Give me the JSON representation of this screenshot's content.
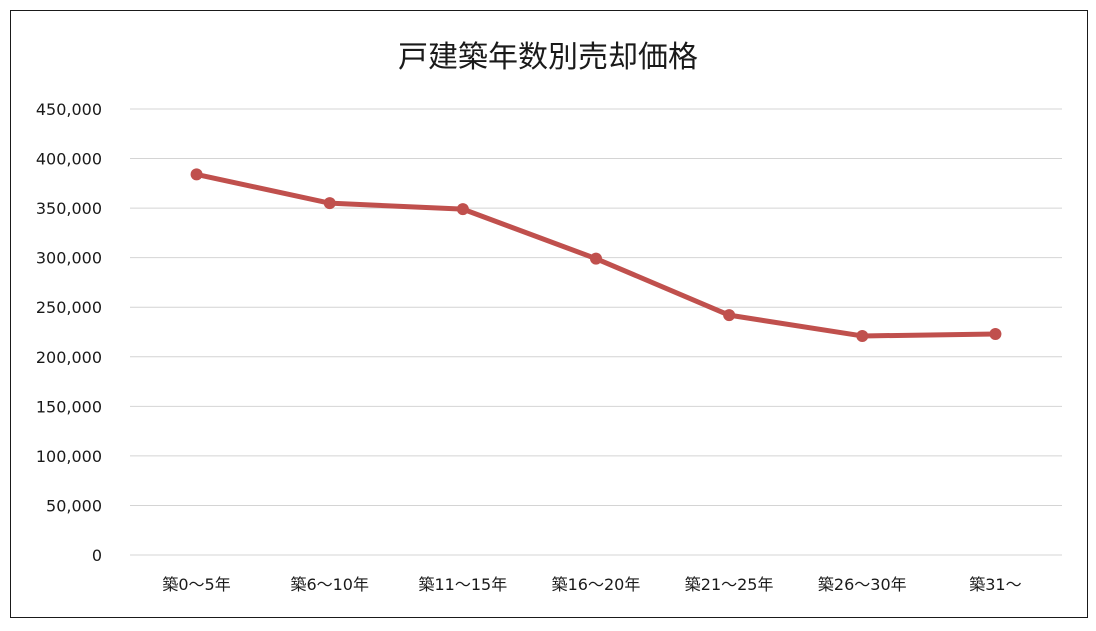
{
  "chart_data": {
    "type": "line",
    "title": "戸建築年数別売却価格",
    "categories": [
      "築0〜5年",
      "築6〜10年",
      "築11〜15年",
      "築16〜20年",
      "築21〜25年",
      "築26〜30年",
      "築31〜"
    ],
    "series": [
      {
        "values": [
          384000,
          355000,
          349000,
          299000,
          242000,
          221000,
          223000
        ],
        "color": "#c0504d"
      }
    ],
    "ylim": [
      0,
      450000
    ],
    "yticks": [
      0,
      50000,
      100000,
      150000,
      200000,
      250000,
      300000,
      350000,
      400000,
      450000
    ],
    "ytick_labels": [
      "0",
      "50,000",
      "100,000",
      "150,000",
      "200,000",
      "250,000",
      "300,000",
      "350,000",
      "400,000",
      "450,000"
    ],
    "xlabel": "",
    "ylabel": "",
    "grid": true,
    "legend": "none"
  }
}
